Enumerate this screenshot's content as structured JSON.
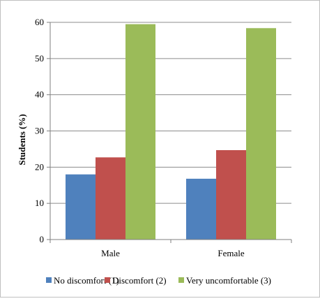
{
  "chart_data": {
    "type": "bar",
    "title": "",
    "xlabel": "",
    "ylabel": "Students (%)",
    "ylim": [
      0,
      60
    ],
    "yticks": [
      0,
      10,
      20,
      30,
      40,
      50,
      60
    ],
    "grid": true,
    "legend_position": "bottom",
    "categories": [
      "Male",
      "Female"
    ],
    "series": [
      {
        "name": "No discomfort (1)",
        "color": "#4F81BD",
        "values": [
          18,
          16.8
        ]
      },
      {
        "name": "Discomfort (2)",
        "color": "#C0504D",
        "values": [
          22.7,
          24.7
        ]
      },
      {
        "name": "Very uncomfortable (3)",
        "color": "#9BBB59",
        "values": [
          59.5,
          58.4
        ]
      }
    ]
  }
}
